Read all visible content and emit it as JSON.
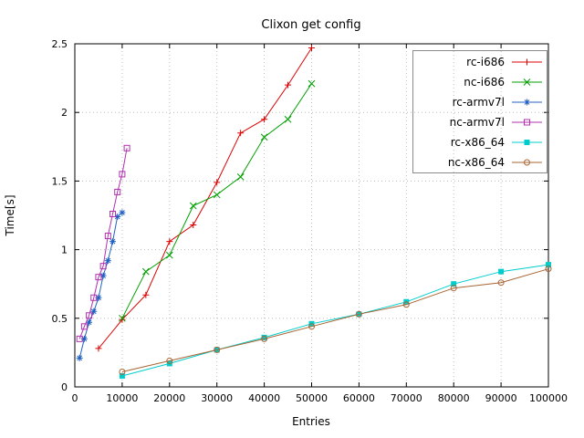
{
  "chart_data": {
    "type": "line",
    "title": "Clixon get config",
    "xlabel": "Entries",
    "ylabel": "Time[s]",
    "xlim": [
      0,
      100000
    ],
    "ylim": [
      0,
      2.5
    ],
    "x_ticks": [
      0,
      10000,
      20000,
      30000,
      40000,
      50000,
      60000,
      70000,
      80000,
      90000,
      100000
    ],
    "y_ticks": [
      0,
      0.5,
      1,
      1.5,
      2,
      2.5
    ],
    "grid": true,
    "legend_position": "top-right",
    "series": [
      {
        "name": "rc-i686",
        "color": "#dd0000",
        "marker": "plus",
        "points": [
          [
            5000,
            0.28
          ],
          [
            10000,
            0.49
          ],
          [
            15000,
            0.67
          ],
          [
            20000,
            1.06
          ],
          [
            25000,
            1.18
          ],
          [
            30000,
            1.49
          ],
          [
            35000,
            1.85
          ],
          [
            40000,
            1.95
          ],
          [
            45000,
            2.2
          ],
          [
            50000,
            2.47
          ]
        ]
      },
      {
        "name": "nc-i686",
        "color": "#00a000",
        "marker": "cross",
        "points": [
          [
            10000,
            0.5
          ],
          [
            15000,
            0.84
          ],
          [
            20000,
            0.96
          ],
          [
            25000,
            1.32
          ],
          [
            30000,
            1.4
          ],
          [
            35000,
            1.53
          ],
          [
            40000,
            1.82
          ],
          [
            45000,
            1.95
          ],
          [
            50000,
            2.21
          ]
        ]
      },
      {
        "name": "rc-armv7l",
        "color": "#2060c0",
        "marker": "asterisk",
        "points": [
          [
            1000,
            0.21
          ],
          [
            2000,
            0.35
          ],
          [
            3000,
            0.47
          ],
          [
            4000,
            0.55
          ],
          [
            5000,
            0.65
          ],
          [
            6000,
            0.81
          ],
          [
            7000,
            0.92
          ],
          [
            8000,
            1.06
          ],
          [
            9000,
            1.24
          ],
          [
            10000,
            1.27
          ]
        ]
      },
      {
        "name": "nc-armv7l",
        "color": "#b030b0",
        "marker": "square-open",
        "points": [
          [
            1000,
            0.35
          ],
          [
            2000,
            0.44
          ],
          [
            3000,
            0.52
          ],
          [
            4000,
            0.65
          ],
          [
            5000,
            0.8
          ],
          [
            6000,
            0.88
          ],
          [
            7000,
            1.1
          ],
          [
            8000,
            1.26
          ],
          [
            9000,
            1.42
          ],
          [
            10000,
            1.55
          ],
          [
            11000,
            1.74
          ]
        ]
      },
      {
        "name": "rc-x86_64",
        "color": "#00cccc",
        "marker": "square-filled",
        "points": [
          [
            10000,
            0.08
          ],
          [
            20000,
            0.17
          ],
          [
            30000,
            0.27
          ],
          [
            40000,
            0.36
          ],
          [
            50000,
            0.46
          ],
          [
            60000,
            0.53
          ],
          [
            70000,
            0.62
          ],
          [
            80000,
            0.75
          ],
          [
            90000,
            0.84
          ],
          [
            100000,
            0.89
          ]
        ]
      },
      {
        "name": "nc-x86_64",
        "color": "#a86432",
        "marker": "circle-open",
        "points": [
          [
            10000,
            0.11
          ],
          [
            20000,
            0.19
          ],
          [
            30000,
            0.27
          ],
          [
            40000,
            0.35
          ],
          [
            50000,
            0.44
          ],
          [
            60000,
            0.53
          ],
          [
            70000,
            0.6
          ],
          [
            80000,
            0.72
          ],
          [
            90000,
            0.76
          ],
          [
            100000,
            0.86
          ]
        ]
      }
    ]
  }
}
